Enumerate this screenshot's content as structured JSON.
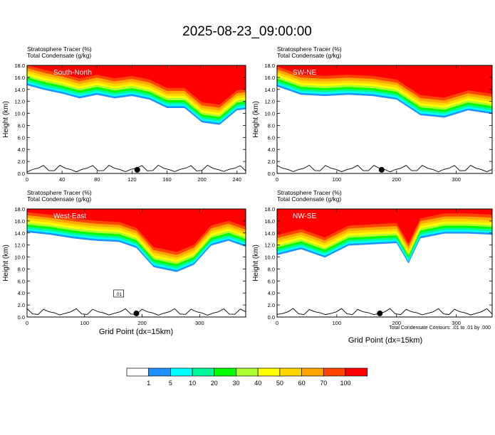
{
  "title": "2025-08-23_09:00:00",
  "panel_header": {
    "line1": "Stratosphere Tracer   (%)",
    "line2": "Total Condensate   (g/kg)"
  },
  "y_axis_label": "Height (km)",
  "x_axis_label": "Grid Point (dx=15km)",
  "contour_note": "Total Condensate Contours: .01 to .01 by .000",
  "contour_label": ".01",
  "chart_data": [
    {
      "type": "heatmap",
      "panel_label": "South-North",
      "xlim": [
        0,
        250
      ],
      "xticks": [
        0,
        40,
        80,
        120,
        160,
        200,
        240
      ],
      "ylim": [
        0,
        18
      ],
      "yticks": [
        0.0,
        2.0,
        4.0,
        6.0,
        8.0,
        10.0,
        12.0,
        14.0,
        16.0,
        18.0
      ],
      "marker_x": 126,
      "tracer_base_km": [
        [
          0,
          14.4
        ],
        [
          20,
          13.6
        ],
        [
          40,
          13.0
        ],
        [
          60,
          12.2
        ],
        [
          80,
          12.8
        ],
        [
          100,
          12.2
        ],
        [
          120,
          12.6
        ],
        [
          140,
          12.0
        ],
        [
          160,
          10.6
        ],
        [
          180,
          10.6
        ],
        [
          200,
          8.2
        ],
        [
          220,
          7.8
        ],
        [
          240,
          10.2
        ],
        [
          250,
          10.4
        ]
      ]
    },
    {
      "type": "heatmap",
      "panel_label": "SW-NE",
      "xlim": [
        0,
        360
      ],
      "xticks": [
        0,
        100,
        200,
        300
      ],
      "ylim": [
        0,
        18
      ],
      "yticks": [
        0.0,
        2.0,
        4.0,
        6.0,
        8.0,
        10.0,
        12.0,
        14.0,
        16.0,
        18.0
      ],
      "marker_x": 175,
      "tracer_base_km": [
        [
          0,
          14.2
        ],
        [
          40,
          12.8
        ],
        [
          80,
          12.6
        ],
        [
          120,
          12.8
        ],
        [
          160,
          12.6
        ],
        [
          200,
          12.0
        ],
        [
          240,
          9.4
        ],
        [
          280,
          9.0
        ],
        [
          320,
          10.2
        ],
        [
          360,
          9.6
        ]
      ]
    },
    {
      "type": "heatmap",
      "panel_label": "West-East",
      "xlim": [
        0,
        380
      ],
      "xticks": [
        0,
        100,
        200,
        300
      ],
      "ylim": [
        0,
        18
      ],
      "yticks": [
        0.0,
        2.0,
        4.0,
        6.0,
        8.0,
        10.0,
        12.0,
        14.0,
        16.0,
        18.0
      ],
      "marker_x": 190,
      "tracer_base_km": [
        [
          0,
          13.8
        ],
        [
          40,
          13.4
        ],
        [
          80,
          12.8
        ],
        [
          120,
          12.4
        ],
        [
          160,
          12.2
        ],
        [
          190,
          11.2
        ],
        [
          220,
          8.0
        ],
        [
          260,
          7.2
        ],
        [
          290,
          8.4
        ],
        [
          320,
          11.6
        ],
        [
          350,
          12.4
        ],
        [
          380,
          11.4
        ]
      ]
    },
    {
      "type": "heatmap",
      "panel_label": "NW-SE",
      "xlim": [
        0,
        360
      ],
      "xticks": [
        0,
        100,
        200,
        300
      ],
      "ylim": [
        0,
        18
      ],
      "yticks": [
        0.0,
        2.0,
        4.0,
        6.0,
        8.0,
        10.0,
        12.0,
        14.0,
        16.0,
        18.0
      ],
      "marker_x": 172,
      "tracer_base_km": [
        [
          0,
          10.0
        ],
        [
          40,
          11.0
        ],
        [
          80,
          9.6
        ],
        [
          120,
          11.6
        ],
        [
          160,
          11.8
        ],
        [
          200,
          12.0
        ],
        [
          220,
          8.6
        ],
        [
          240,
          12.8
        ],
        [
          280,
          13.6
        ],
        [
          320,
          13.6
        ],
        [
          360,
          13.4
        ]
      ]
    }
  ],
  "colorbar": {
    "labels": [
      "1",
      "5",
      "10",
      "20",
      "30",
      "40",
      "50",
      "60",
      "70",
      "100"
    ],
    "colors": [
      "#ffffff",
      "#1e90ff",
      "#00ffff",
      "#00fa9a",
      "#00ff00",
      "#adff2f",
      "#ffff00",
      "#ffd700",
      "#ffa500",
      "#ff4500",
      "#ff0000"
    ]
  }
}
